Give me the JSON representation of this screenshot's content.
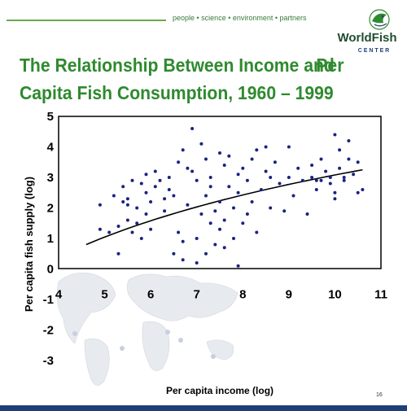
{
  "header": {
    "tagline": "people • science • environment • partners"
  },
  "logo": {
    "name": "WorldFish",
    "sub": "C E N T E R"
  },
  "slide": {
    "title_line1": "The Relationship Between Income and",
    "title_per": "Per",
    "title_line2": "Capita Fish Consumption, 1960 – 1999",
    "page_number": "16"
  },
  "colors": {
    "title": "#2f8a2f",
    "points": "#1a237e",
    "trend": "#000000",
    "footer_bar": "#1f3f7a"
  },
  "chart_data": {
    "type": "scatter",
    "xlabel": "Per capita income (log)",
    "ylabel": "Per capita fish supply (log)",
    "xlim": [
      4,
      11
    ],
    "ylim": [
      -3,
      5
    ],
    "xticks": [
      4,
      5,
      6,
      7,
      8,
      9,
      10,
      11
    ],
    "yticks": [
      -3,
      -2,
      -1,
      0,
      1,
      2,
      3,
      4,
      5
    ],
    "grid": false,
    "trend": {
      "type": "logarithmic",
      "x_start": 4.6,
      "x_end": 10.6,
      "y_start": 0.8,
      "y_end": 3.25
    },
    "points": [
      [
        4.9,
        2.1
      ],
      [
        4.9,
        1.3
      ],
      [
        5.1,
        1.2
      ],
      [
        5.2,
        2.4
      ],
      [
        5.3,
        0.5
      ],
      [
        5.3,
        1.4
      ],
      [
        5.4,
        2.7
      ],
      [
        5.4,
        2.2
      ],
      [
        5.5,
        2.3
      ],
      [
        5.5,
        2.1
      ],
      [
        5.5,
        1.6
      ],
      [
        5.6,
        1.2
      ],
      [
        5.6,
        2.9
      ],
      [
        5.7,
        2.0
      ],
      [
        5.7,
        1.5
      ],
      [
        5.8,
        2.8
      ],
      [
        5.8,
        1.0
      ],
      [
        5.9,
        3.1
      ],
      [
        5.9,
        2.5
      ],
      [
        6.0,
        2.2
      ],
      [
        6.0,
        1.3
      ],
      [
        6.1,
        3.2
      ],
      [
        6.1,
        2.7
      ],
      [
        6.2,
        2.9
      ],
      [
        6.3,
        1.9
      ],
      [
        6.3,
        2.3
      ],
      [
        6.4,
        2.6
      ],
      [
        6.5,
        0.5
      ],
      [
        6.5,
        2.4
      ],
      [
        6.6,
        1.2
      ],
      [
        6.6,
        3.5
      ],
      [
        6.7,
        3.9
      ],
      [
        6.7,
        0.3
      ],
      [
        6.7,
        0.9
      ],
      [
        6.8,
        2.1
      ],
      [
        6.8,
        3.3
      ],
      [
        6.9,
        4.6
      ],
      [
        6.9,
        3.2
      ],
      [
        7.0,
        1.0
      ],
      [
        7.0,
        2.9
      ],
      [
        7.0,
        0.2
      ],
      [
        7.1,
        4.1
      ],
      [
        7.1,
        1.8
      ],
      [
        7.2,
        3.6
      ],
      [
        7.2,
        2.4
      ],
      [
        7.2,
        0.5
      ],
      [
        7.3,
        1.5
      ],
      [
        7.3,
        3.0
      ],
      [
        7.4,
        1.9
      ],
      [
        7.4,
        0.8
      ],
      [
        7.5,
        3.8
      ],
      [
        7.5,
        2.2
      ],
      [
        7.5,
        1.3
      ],
      [
        7.6,
        3.4
      ],
      [
        7.6,
        1.6
      ],
      [
        7.6,
        0.7
      ],
      [
        7.7,
        2.7
      ],
      [
        7.7,
        3.7
      ],
      [
        7.8,
        2.0
      ],
      [
        7.8,
        1.0
      ],
      [
        7.9,
        3.1
      ],
      [
        7.9,
        2.5
      ],
      [
        7.9,
        0.1
      ],
      [
        8.0,
        1.5
      ],
      [
        8.0,
        3.3
      ],
      [
        8.1,
        2.9
      ],
      [
        8.1,
        1.8
      ],
      [
        8.2,
        3.6
      ],
      [
        8.2,
        2.2
      ],
      [
        8.3,
        3.9
      ],
      [
        8.3,
        1.2
      ],
      [
        8.4,
        2.6
      ],
      [
        8.5,
        3.2
      ],
      [
        8.5,
        4.0
      ],
      [
        8.6,
        2.0
      ],
      [
        8.7,
        3.5
      ],
      [
        8.8,
        2.8
      ],
      [
        8.9,
        1.9
      ],
      [
        9.0,
        3.0
      ],
      [
        9.0,
        4.0
      ],
      [
        9.1,
        2.4
      ],
      [
        9.2,
        3.3
      ],
      [
        9.3,
        2.9
      ],
      [
        9.4,
        1.8
      ],
      [
        9.5,
        3.0
      ],
      [
        9.5,
        3.4
      ],
      [
        9.6,
        2.6
      ],
      [
        9.7,
        3.6
      ],
      [
        9.7,
        2.9
      ],
      [
        9.8,
        3.2
      ],
      [
        9.9,
        2.8
      ],
      [
        9.9,
        3.0
      ],
      [
        10.0,
        2.3
      ],
      [
        10.0,
        2.5
      ],
      [
        10.0,
        4.4
      ],
      [
        10.1,
        3.9
      ],
      [
        10.1,
        3.3
      ],
      [
        10.2,
        3.0
      ],
      [
        10.2,
        2.9
      ],
      [
        10.3,
        3.6
      ],
      [
        10.3,
        4.2
      ],
      [
        10.4,
        3.1
      ],
      [
        10.5,
        3.5
      ],
      [
        10.5,
        2.5
      ],
      [
        10.6,
        2.6
      ],
      [
        9.6,
        2.9
      ],
      [
        8.6,
        3.0
      ],
      [
        7.3,
        2.7
      ],
      [
        6.4,
        3.0
      ],
      [
        5.9,
        1.8
      ]
    ]
  }
}
